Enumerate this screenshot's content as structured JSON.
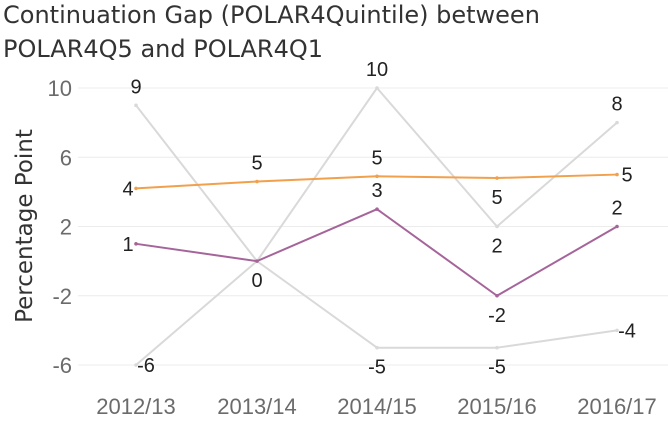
{
  "chart_data": {
    "type": "line",
    "title": "Continuation Gap (POLAR4Quintile) between POLAR4Q5 and POLAR4Q1",
    "ylabel": "Percentage Point",
    "xlabel": "",
    "categories": [
      "2012/13",
      "2013/14",
      "2014/15",
      "2015/16",
      "2016/17"
    ],
    "ylim": [
      -7,
      10.5
    ],
    "yticks": [
      10,
      6,
      2,
      -2,
      -6
    ],
    "ytick_labels": [
      "10",
      "6",
      "2",
      "-2",
      "-6"
    ],
    "grid": "horizontal",
    "legend": "none",
    "series": [
      {
        "color": "#d9d9d9",
        "values": [
          9,
          0,
          10,
          2,
          8
        ],
        "labels": [
          "9",
          "0",
          "10",
          "2",
          "8"
        ],
        "label_pos": [
          "above",
          "below",
          "above",
          "below",
          "above"
        ]
      },
      {
        "color": "#d9d9d9",
        "values": [
          -6,
          0,
          -5,
          -5,
          -4
        ],
        "labels": [
          "-6",
          "",
          "-5",
          "-5",
          "-4"
        ],
        "label_pos": [
          "right",
          "below",
          "below",
          "below",
          "right"
        ]
      },
      {
        "color": "#f1a04c",
        "values": [
          4.2,
          4.6,
          4.9,
          4.8,
          5.0
        ],
        "labels": [
          "4",
          "5",
          "5",
          "5",
          "5"
        ],
        "label_pos": [
          "left",
          "above",
          "above",
          "below",
          "right"
        ]
      },
      {
        "color": "#a5659a",
        "values": [
          1,
          0,
          3,
          -2,
          2
        ],
        "labels": [
          "1",
          "",
          "3",
          "-2",
          "2"
        ],
        "label_pos": [
          "left",
          "below",
          "above",
          "below",
          "above"
        ]
      }
    ]
  }
}
